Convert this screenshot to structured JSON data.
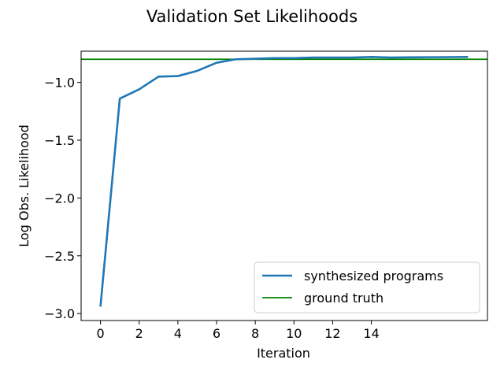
{
  "chart_data": {
    "type": "line",
    "title": "Validation Set Likelihoods",
    "xlabel": "Iteration",
    "ylabel": "Log Obs. Likelihood",
    "xlim": [
      -1,
      20
    ],
    "ylim": [
      -3.06,
      -0.73
    ],
    "xticks": [
      0,
      2,
      4,
      6,
      8,
      10,
      12,
      14
    ],
    "yticks": [
      -3.0,
      -2.5,
      -2.0,
      -1.5,
      -1.0
    ],
    "ytick_labels": [
      "−3.0",
      "−2.5",
      "−2.0",
      "−1.5",
      "−1.0"
    ],
    "series": [
      {
        "name": "synthesized programs",
        "color": "#1f77b4",
        "x": [
          0,
          1,
          2,
          3,
          4,
          5,
          6,
          7,
          8,
          9,
          10,
          11,
          12,
          13,
          14,
          15,
          16,
          17,
          18,
          19
        ],
        "y": [
          -2.94,
          -1.14,
          -1.06,
          -0.95,
          -0.945,
          -0.9,
          -0.83,
          -0.8,
          -0.795,
          -0.79,
          -0.79,
          -0.785,
          -0.785,
          -0.785,
          -0.78,
          -0.785,
          -0.783,
          -0.782,
          -0.781,
          -0.78
        ]
      }
    ],
    "reference_lines": [
      {
        "name": "ground truth",
        "color": "#008000",
        "y": -0.8
      }
    ],
    "legend_position": "lower-right",
    "grid": false
  }
}
